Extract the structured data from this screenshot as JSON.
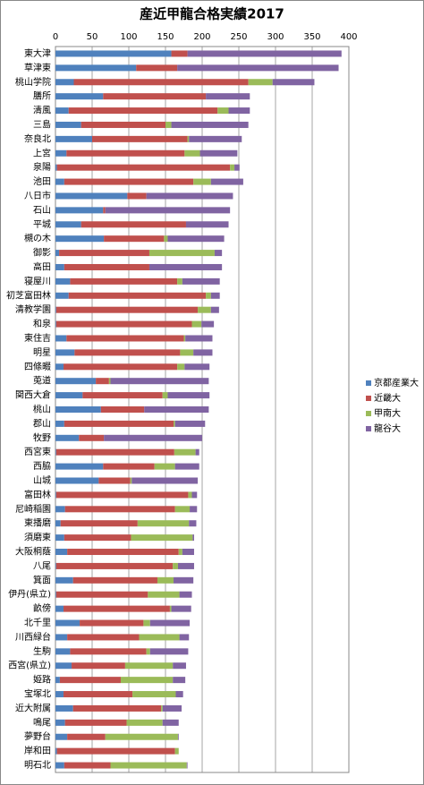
{
  "chart_data": {
    "type": "stacked_barh",
    "title": "産近甲龍合格実績2017",
    "categories": [
      "東大津",
      "草津東",
      "桃山学院",
      "膳所",
      "清風",
      "三島",
      "奈良北",
      "上宮",
      "泉陽",
      "池田",
      "八日市",
      "石山",
      "平城",
      "槻の木",
      "御影",
      "高田",
      "寝屋川",
      "初芝富田林",
      "清教学園",
      "和泉",
      "東住吉",
      "明星",
      "四條畷",
      "莵道",
      "関西大倉",
      "桃山",
      "郡山",
      "牧野",
      "西宮東",
      "西脇",
      "山城",
      "富田林",
      "尼崎稲園",
      "東播磨",
      "須磨東",
      "大阪桐蔭",
      "八尾",
      "箕面",
      "伊丹(県立)",
      "畝傍",
      "北千里",
      "川西緑台",
      "生駒",
      "西宮(県立)",
      "姫路",
      "宝塚北",
      "近大附属",
      "鳴尾",
      "夢野台",
      "岸和田",
      "明石北"
    ],
    "series": [
      {
        "name": "京都産業大",
        "color": "#4f81bd",
        "values": [
          158,
          110,
          25,
          65,
          18,
          35,
          50,
          15,
          2,
          12,
          98,
          65,
          35,
          66,
          5,
          12,
          20,
          18,
          1,
          1,
          15,
          26,
          11,
          55,
          37,
          62,
          12,
          32,
          1,
          65,
          59,
          1,
          13,
          7,
          12,
          16,
          1,
          24,
          1,
          11,
          33,
          16,
          20,
          22,
          6,
          11,
          24,
          13,
          16,
          2,
          12
        ]
      },
      {
        "name": "近畿大",
        "color": "#c0504d",
        "values": [
          22,
          56,
          238,
          140,
          203,
          115,
          130,
          161,
          236,
          176,
          26,
          3,
          143,
          82,
          123,
          116,
          146,
          187,
          193,
          185,
          160,
          144,
          155,
          18,
          109,
          59,
          149,
          34,
          161,
          70,
          43,
          180,
          150,
          105,
          91,
          152,
          159,
          115,
          125,
          145,
          87,
          98,
          104,
          73,
          83,
          94,
          120,
          84,
          52,
          161,
          63
        ]
      },
      {
        "name": "甲南大",
        "color": "#9bbb59",
        "values": [
          0,
          0,
          33,
          0,
          15,
          8,
          2,
          21,
          6,
          24,
          0,
          0,
          0,
          5,
          89,
          0,
          7,
          7,
          18,
          13,
          2,
          18,
          10,
          2,
          7,
          0,
          2,
          0,
          29,
          28,
          2,
          5,
          20,
          70,
          84,
          5,
          7,
          22,
          43,
          2,
          9,
          55,
          5,
          65,
          71,
          59,
          2,
          49,
          99,
          5,
          104
        ]
      },
      {
        "name": "龍谷大",
        "color": "#8064a2",
        "values": [
          210,
          220,
          57,
          60,
          29,
          105,
          72,
          51,
          7,
          44,
          118,
          170,
          58,
          77,
          10,
          99,
          51,
          12,
          11,
          17,
          37,
          26,
          34,
          134,
          57,
          88,
          41,
          134,
          5,
          33,
          90,
          7,
          10,
          10,
          2,
          16,
          22,
          27,
          17,
          27,
          54,
          13,
          52,
          18,
          17,
          10,
          26,
          22,
          1,
          0,
          1
        ]
      }
    ],
    "xlim": [
      0,
      400
    ],
    "xticks": [
      0,
      50,
      100,
      150,
      200,
      250,
      300,
      350,
      400
    ],
    "grid": true,
    "legend": "right"
  }
}
